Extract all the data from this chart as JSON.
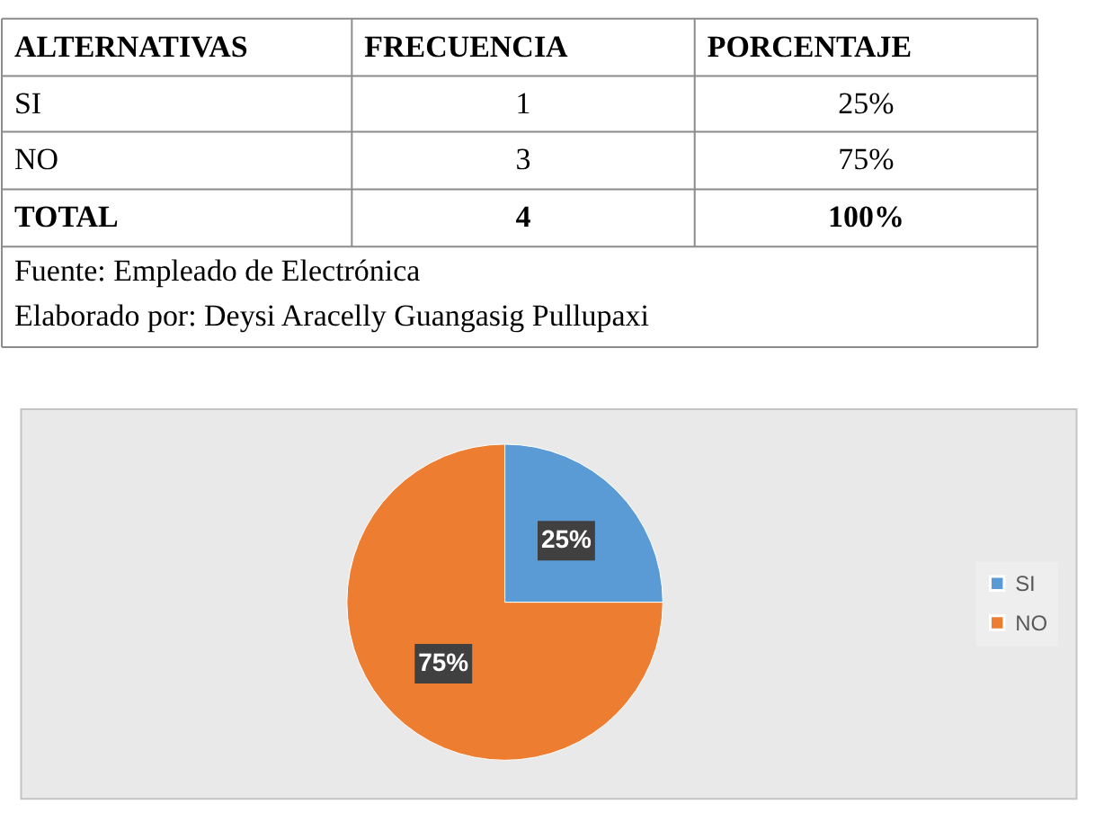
{
  "chart_data": [
    {
      "type": "other",
      "annotations": [
        "ALTERNATIVAS",
        "FRECUENCIA",
        "PORCENTAJE",
        "SI",
        "1",
        "25%",
        "NO",
        "3",
        "75%",
        "TOTAL",
        "4",
        "100%",
        "Fuente: Empleado de Electrónica",
        "Elaborado por: Deysi Aracelly Guangasig Pullupaxi"
      ]
    },
    {
      "type": "pie",
      "categories": [
        "SI",
        "NO"
      ],
      "values": [
        25,
        75
      ],
      "colors": [
        "#5b9bd5",
        "#ed7d31"
      ],
      "value_labels": [
        "25%",
        "75%"
      ],
      "legend": "right"
    }
  ]
}
